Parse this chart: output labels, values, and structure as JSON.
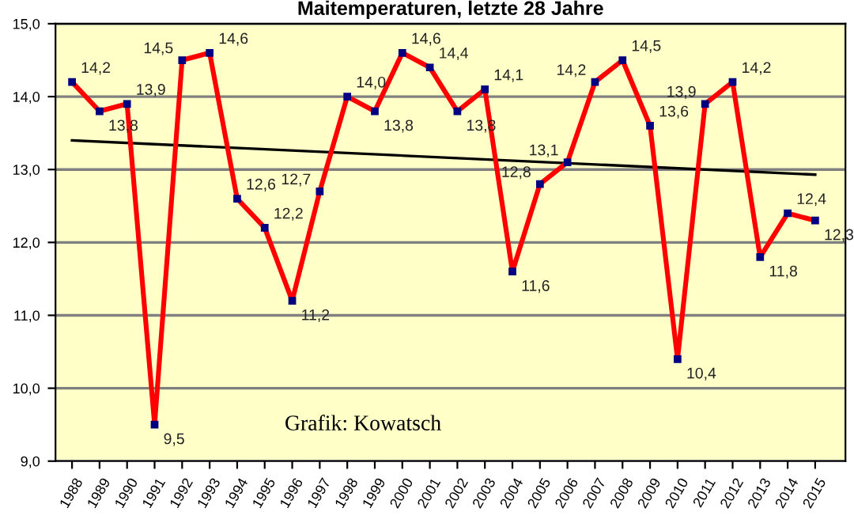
{
  "chart_data": {
    "type": "line",
    "title": "Maitemperaturen, letzte 28 Jahre",
    "categories": [
      "1988",
      "1989",
      "1990",
      "1991",
      "1992",
      "1993",
      "1994",
      "1995",
      "1996",
      "1997",
      "1998",
      "1999",
      "2000",
      "2001",
      "2002",
      "2003",
      "2004",
      "2005",
      "2006",
      "2007",
      "2008",
      "2009",
      "2010",
      "2011",
      "2012",
      "2013",
      "2014",
      "2015"
    ],
    "series": [
      {
        "color": "#ff0000",
        "values": [
          14.2,
          13.8,
          13.9,
          9.5,
          14.5,
          14.6,
          12.6,
          12.2,
          11.2,
          12.7,
          14.0,
          13.8,
          14.6,
          14.4,
          13.8,
          14.1,
          11.6,
          12.8,
          13.1,
          14.2,
          14.5,
          13.6,
          10.4,
          13.9,
          14.2,
          11.8,
          12.4,
          12.3
        ],
        "value_labels": [
          "14,2",
          "13,8",
          "13,9",
          "9,5",
          "14,5",
          "14,6",
          "12,6",
          "12,2",
          "11,2",
          "12,7",
          "14,0",
          "13,8",
          "14,6",
          "14,4",
          "13,8",
          "14,1",
          "11,6",
          "12,8",
          "13,1",
          "14,2",
          "14,5",
          "13,6",
          "10,4",
          "13,9",
          "14,2",
          "11,8",
          "12,4",
          "12,3"
        ],
        "marker": "square"
      },
      {
        "type": "line",
        "color": "#000000",
        "values": [
          13.4,
          null,
          null,
          null,
          null,
          null,
          null,
          null,
          null,
          null,
          null,
          null,
          null,
          null,
          null,
          null,
          null,
          null,
          null,
          null,
          null,
          null,
          null,
          null,
          null,
          null,
          null,
          12.93
        ],
        "marker": "none"
      }
    ],
    "ylim": [
      9,
      15
    ],
    "yticks": [
      {
        "value": 9,
        "label": "9,0"
      },
      {
        "value": 10,
        "label": "10,0"
      },
      {
        "value": 11,
        "label": "11,0"
      },
      {
        "value": 12,
        "label": "12,0"
      },
      {
        "value": 13,
        "label": "13,0"
      },
      {
        "value": 14,
        "label": "14,0"
      },
      {
        "value": 15,
        "label": "15,0"
      }
    ],
    "grid": "y",
    "line_style": "solid",
    "annotations": [
      "Grafik: Kowatsch"
    ]
  }
}
